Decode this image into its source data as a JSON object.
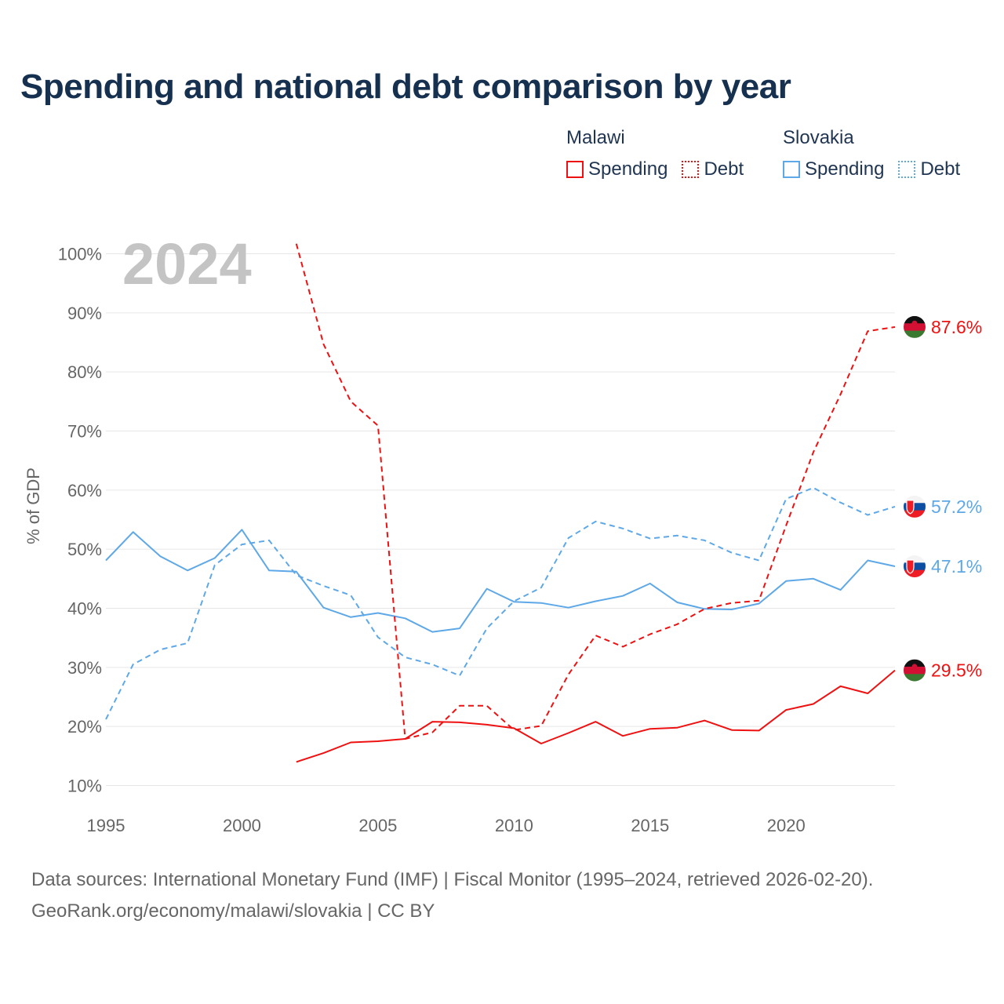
{
  "title": "Spending and national debt comparison by year",
  "legend": {
    "groups": [
      {
        "name": "Malawi",
        "entries": [
          "Spending",
          "Debt"
        ]
      },
      {
        "name": "Slovakia",
        "entries": [
          "Spending",
          "Debt"
        ]
      }
    ]
  },
  "footer": {
    "sources": "Data sources: International Monetary Fund (IMF) | Fiscal Monitor (1995–2024, retrieved 2026-02-20).",
    "link": "GeoRank.org/economy/malawi/slovakia | CC BY"
  },
  "chart_data": {
    "type": "line",
    "title": "Spending and national debt comparison by year",
    "year_label": "2024",
    "xlabel": "",
    "ylabel": "% of GDP",
    "xlim": [
      1995,
      2024
    ],
    "ylim": [
      10,
      100
    ],
    "x_ticks": [
      1995,
      2000,
      2005,
      2010,
      2015,
      2020
    ],
    "y_ticks": [
      10,
      20,
      30,
      40,
      50,
      60,
      70,
      80,
      90,
      100
    ],
    "y_tick_labels": [
      "10%",
      "20%",
      "30%",
      "40%",
      "50%",
      "60%",
      "70%",
      "80%",
      "90%",
      "100%"
    ],
    "x": [
      1995,
      1996,
      1997,
      1998,
      1999,
      2000,
      2001,
      2002,
      2003,
      2004,
      2005,
      2006,
      2007,
      2008,
      2009,
      2010,
      2011,
      2012,
      2013,
      2014,
      2015,
      2016,
      2017,
      2018,
      2019,
      2020,
      2021,
      2022,
      2023,
      2024
    ],
    "series": [
      {
        "name": "Slovakia Debt",
        "country": "Slovakia",
        "measure": "Debt",
        "color": "#5ea8e8",
        "dashed": true,
        "end_label": "57.2%",
        "values": [
          21.2,
          30.5,
          33.0,
          34.1,
          47.3,
          50.8,
          51.5,
          45.6,
          43.8,
          42.2,
          35.1,
          31.7,
          30.5,
          28.6,
          36.6,
          41.2,
          43.5,
          51.9,
          54.7,
          53.5,
          51.8,
          52.3,
          51.5,
          49.4,
          48.1,
          58.5,
          60.4,
          57.9,
          55.8,
          57.2
        ]
      },
      {
        "name": "Slovakia Spending",
        "country": "Slovakia",
        "measure": "Spending",
        "color": "#5ea8e8",
        "dashed": false,
        "end_label": "47.1%",
        "values": [
          48.1,
          52.9,
          48.8,
          46.4,
          48.5,
          53.3,
          46.4,
          46.2,
          40.1,
          38.5,
          39.2,
          38.3,
          36.0,
          36.6,
          43.3,
          41.1,
          40.9,
          40.1,
          41.2,
          42.1,
          44.2,
          41.0,
          39.9,
          39.8,
          40.8,
          44.6,
          45.0,
          43.1,
          48.1,
          47.1
        ]
      },
      {
        "name": "Malawi Debt",
        "country": "Malawi",
        "measure": "Debt",
        "color": "#ee1111",
        "dashed": true,
        "end_label": "87.6%",
        "values": [
          null,
          null,
          null,
          null,
          null,
          null,
          null,
          101.7,
          84.7,
          75.0,
          70.9,
          17.9,
          19.0,
          23.5,
          23.5,
          19.4,
          20.1,
          28.8,
          35.4,
          33.5,
          35.6,
          37.3,
          39.9,
          40.9,
          41.3,
          54.0,
          66.4,
          76.2,
          86.9,
          87.6
        ]
      },
      {
        "name": "Malawi Spending",
        "country": "Malawi",
        "measure": "Spending",
        "color": "#ee1111",
        "dashed": false,
        "end_label": "29.5%",
        "values": [
          null,
          null,
          null,
          null,
          null,
          null,
          null,
          14.0,
          15.5,
          17.3,
          17.5,
          17.9,
          20.8,
          20.7,
          20.3,
          19.7,
          17.1,
          18.9,
          20.8,
          18.4,
          19.6,
          19.8,
          21.0,
          19.4,
          19.3,
          22.8,
          23.8,
          26.8,
          25.6,
          29.5
        ]
      }
    ]
  }
}
